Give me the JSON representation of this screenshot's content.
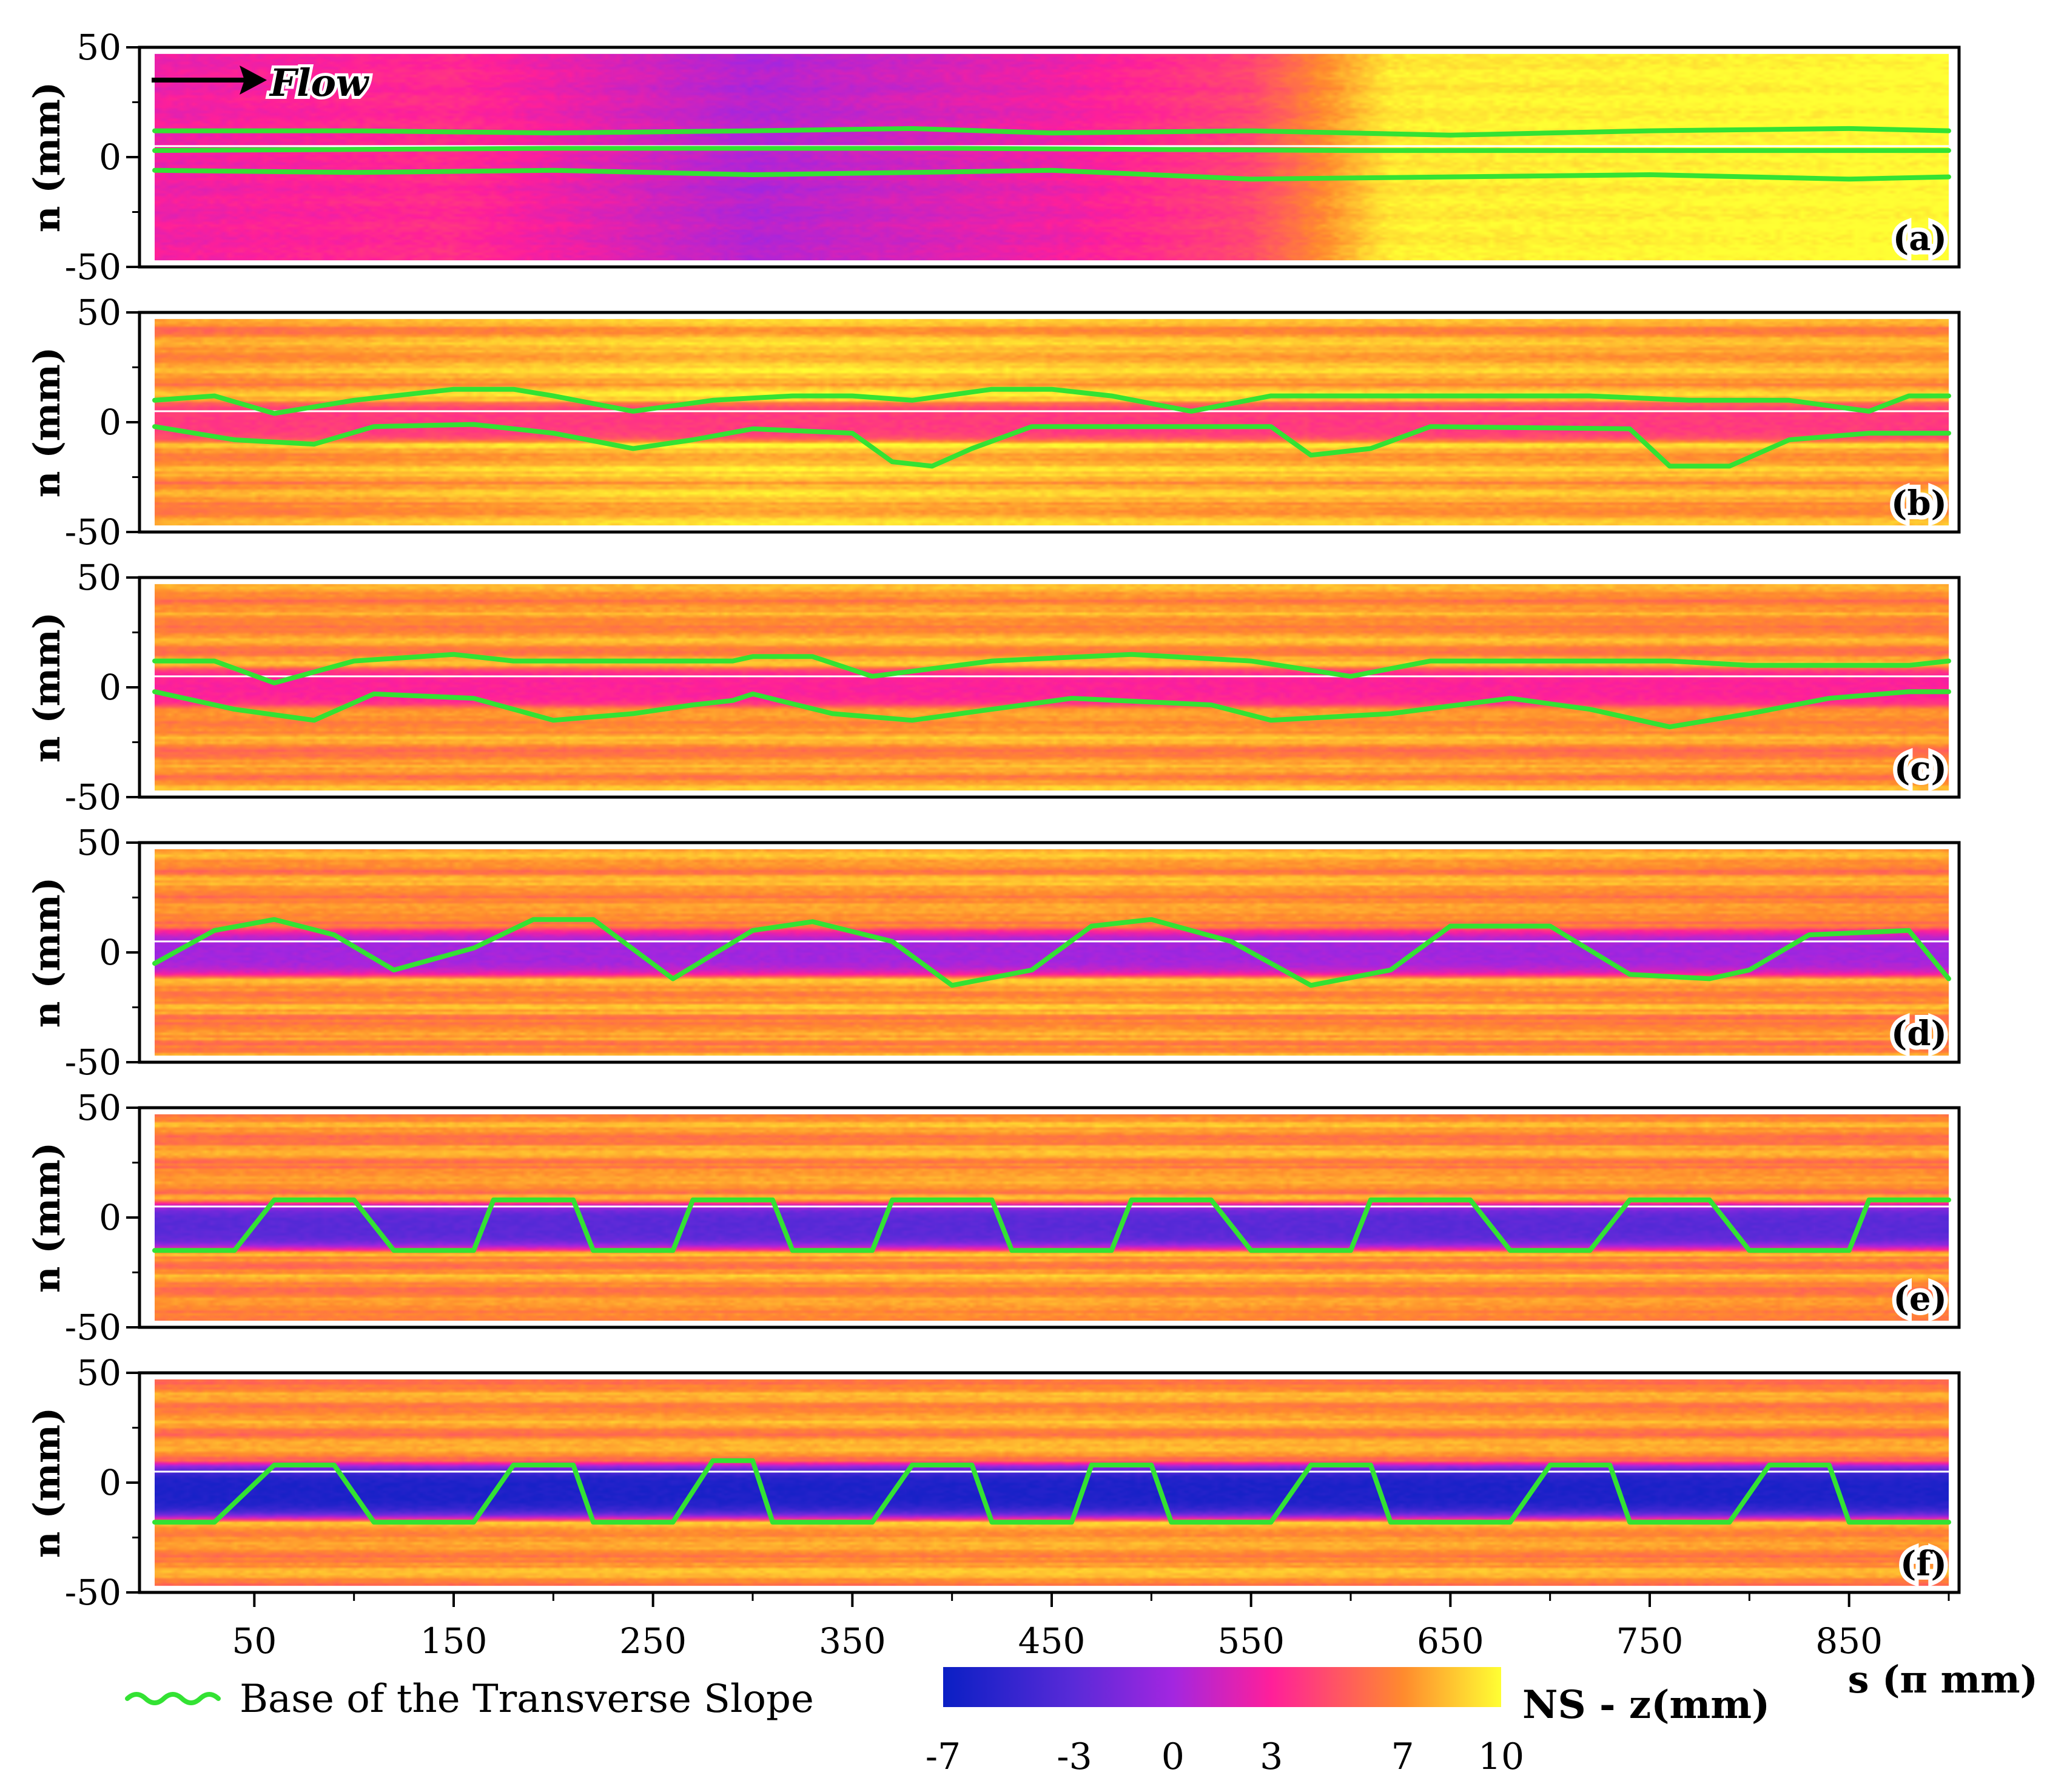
{
  "chart_data": {
    "type": "heatmap",
    "x_axis": {
      "label": "s (π mm)",
      "range": [
        0,
        900
      ],
      "ticks": [
        50,
        150,
        250,
        350,
        450,
        550,
        650,
        750,
        850
      ],
      "tick_labels": [
        "50",
        "150",
        "250",
        "350",
        "450",
        "550",
        "650",
        "750",
        "850"
      ]
    },
    "y_axis": {
      "label": "n (mm)",
      "range": [
        -50,
        50
      ],
      "data_range": [
        -47,
        47
      ],
      "ticks": [
        50,
        0,
        -50
      ],
      "tick_labels": [
        "50",
        "0",
        "-50"
      ]
    },
    "centerline_n": 5,
    "annotation": {
      "text": "Flow",
      "arrow": "right"
    },
    "colorbar": {
      "label": "NS - z(mm)",
      "range": [
        -7,
        10
      ],
      "ticks": [
        -7,
        -3,
        0,
        3,
        7,
        10
      ],
      "tick_labels": [
        "-7",
        "-3",
        "0",
        "3",
        "7",
        "10"
      ],
      "stops": [
        {
          "value": -7,
          "color": "#0a1fc4"
        },
        {
          "value": -3,
          "color": "#5a2ad8"
        },
        {
          "value": 0,
          "color": "#a326e0"
        },
        {
          "value": 3,
          "color": "#ff1f9a"
        },
        {
          "value": 7,
          "color": "#ff8a2e"
        },
        {
          "value": 10,
          "color": "#ffff33"
        }
      ]
    },
    "legend": [
      {
        "label": "Base of the Transverse Slope",
        "color": "#33e233"
      }
    ],
    "series": [
      {
        "name": "(a)",
        "panel_label": "(a)",
        "style": "tube",
        "upper": [
          [
            0,
            12
          ],
          [
            100,
            12
          ],
          [
            200,
            11
          ],
          [
            300,
            12
          ],
          [
            380,
            13
          ],
          [
            450,
            11
          ],
          [
            550,
            12
          ],
          [
            650,
            10
          ],
          [
            750,
            12
          ],
          [
            850,
            13
          ],
          [
            900,
            12
          ]
        ],
        "lower": [
          [
            0,
            -6
          ],
          [
            100,
            -7
          ],
          [
            200,
            -6
          ],
          [
            300,
            -8
          ],
          [
            380,
            -7
          ],
          [
            450,
            -6
          ],
          [
            550,
            -10
          ],
          [
            650,
            -9
          ],
          [
            750,
            -8
          ],
          [
            850,
            -10
          ],
          [
            900,
            -9
          ]
        ],
        "mid": [
          [
            0,
            3
          ],
          [
            200,
            4
          ],
          [
            400,
            4
          ],
          [
            600,
            3
          ],
          [
            800,
            3
          ],
          [
            900,
            3
          ]
        ],
        "field": {
          "base": 3.5,
          "center": 3,
          "center_width": 6,
          "trend": [
            [
              0,
              2.5
            ],
            [
              150,
              3.5
            ],
            [
              300,
              0.5
            ],
            [
              450,
              2.5
            ],
            [
              550,
              4.5
            ],
            [
              620,
              9.5
            ],
            [
              900,
              10
            ]
          ]
        }
      },
      {
        "name": "(b)",
        "panel_label": "(b)",
        "style": "blobs",
        "upper": [
          [
            0,
            10
          ],
          [
            30,
            12
          ],
          [
            60,
            4
          ],
          [
            100,
            10
          ],
          [
            150,
            15
          ],
          [
            180,
            15
          ],
          [
            200,
            12
          ],
          [
            240,
            5
          ],
          [
            280,
            10
          ],
          [
            320,
            12
          ],
          [
            350,
            12
          ],
          [
            380,
            10
          ],
          [
            420,
            15
          ],
          [
            450,
            15
          ],
          [
            480,
            12
          ],
          [
            520,
            5
          ],
          [
            560,
            12
          ],
          [
            650,
            12
          ],
          [
            720,
            12
          ],
          [
            770,
            10
          ],
          [
            820,
            10
          ],
          [
            860,
            5
          ],
          [
            880,
            12
          ],
          [
            900,
            12
          ]
        ],
        "lower": [
          [
            0,
            -2
          ],
          [
            40,
            -8
          ],
          [
            80,
            -10
          ],
          [
            110,
            -2
          ],
          [
            160,
            -1
          ],
          [
            200,
            -5
          ],
          [
            240,
            -12
          ],
          [
            270,
            -8
          ],
          [
            300,
            -3
          ],
          [
            350,
            -5
          ],
          [
            370,
            -18
          ],
          [
            390,
            -20
          ],
          [
            410,
            -12
          ],
          [
            440,
            -2
          ],
          [
            560,
            -2
          ],
          [
            580,
            -15
          ],
          [
            610,
            -12
          ],
          [
            640,
            -2
          ],
          [
            740,
            -3
          ],
          [
            760,
            -20
          ],
          [
            790,
            -20
          ],
          [
            820,
            -8
          ],
          [
            860,
            -5
          ],
          [
            900,
            -5
          ]
        ],
        "mid": [],
        "field": {
          "base": 7.5,
          "center": 4,
          "center_width": 10,
          "trend": [
            [
              0,
              7
            ],
            [
              300,
              8.5
            ],
            [
              500,
              8
            ],
            [
              900,
              7.5
            ]
          ]
        }
      },
      {
        "name": "(c)",
        "panel_label": "(c)",
        "style": "blobs",
        "upper": [
          [
            0,
            12
          ],
          [
            30,
            12
          ],
          [
            60,
            2
          ],
          [
            100,
            12
          ],
          [
            150,
            15
          ],
          [
            180,
            12
          ],
          [
            260,
            12
          ],
          [
            290,
            12
          ],
          [
            300,
            14
          ],
          [
            330,
            14
          ],
          [
            360,
            5
          ],
          [
            420,
            12
          ],
          [
            490,
            15
          ],
          [
            550,
            12
          ],
          [
            600,
            5
          ],
          [
            640,
            12
          ],
          [
            700,
            12
          ],
          [
            760,
            12
          ],
          [
            800,
            10
          ],
          [
            880,
            10
          ],
          [
            900,
            12
          ]
        ],
        "lower": [
          [
            0,
            -2
          ],
          [
            40,
            -10
          ],
          [
            80,
            -15
          ],
          [
            110,
            -3
          ],
          [
            160,
            -5
          ],
          [
            200,
            -15
          ],
          [
            240,
            -12
          ],
          [
            270,
            -8
          ],
          [
            290,
            -6
          ],
          [
            300,
            -3
          ],
          [
            340,
            -12
          ],
          [
            380,
            -15
          ],
          [
            420,
            -10
          ],
          [
            460,
            -5
          ],
          [
            530,
            -8
          ],
          [
            560,
            -15
          ],
          [
            620,
            -12
          ],
          [
            680,
            -5
          ],
          [
            720,
            -10
          ],
          [
            760,
            -18
          ],
          [
            800,
            -12
          ],
          [
            840,
            -5
          ],
          [
            880,
            -2
          ],
          [
            900,
            -2
          ]
        ],
        "mid": [],
        "field": {
          "base": 7.5,
          "center": 3,
          "center_width": 10,
          "trend": [
            [
              0,
              7
            ],
            [
              450,
              7.5
            ],
            [
              900,
              7
            ]
          ]
        }
      },
      {
        "name": "(d)",
        "panel_label": "(d)",
        "style": "wave",
        "upper": [
          [
            0,
            -5
          ],
          [
            30,
            10
          ],
          [
            60,
            15
          ],
          [
            90,
            8
          ],
          [
            120,
            -8
          ],
          [
            160,
            2
          ],
          [
            190,
            15
          ],
          [
            220,
            15
          ],
          [
            260,
            -12
          ],
          [
            300,
            10
          ],
          [
            330,
            14
          ],
          [
            370,
            5
          ],
          [
            400,
            -15
          ],
          [
            440,
            -8
          ],
          [
            470,
            12
          ],
          [
            500,
            15
          ],
          [
            540,
            5
          ],
          [
            580,
            -15
          ],
          [
            620,
            -8
          ],
          [
            650,
            12
          ],
          [
            700,
            12
          ],
          [
            740,
            -10
          ],
          [
            780,
            -12
          ],
          [
            800,
            -8
          ],
          [
            830,
            8
          ],
          [
            880,
            10
          ],
          [
            900,
            -12
          ]
        ],
        "lower": [],
        "mid": [],
        "field": {
          "base": 7.5,
          "center": 0,
          "center_width": 12,
          "trend": [
            [
              0,
              7
            ],
            [
              450,
              7.5
            ],
            [
              900,
              7
            ]
          ]
        }
      },
      {
        "name": "(e)",
        "panel_label": "(e)",
        "style": "square",
        "upper": [
          [
            0,
            -15
          ],
          [
            40,
            -15
          ],
          [
            60,
            8
          ],
          [
            100,
            8
          ],
          [
            120,
            -15
          ],
          [
            160,
            -15
          ],
          [
            170,
            8
          ],
          [
            210,
            8
          ],
          [
            220,
            -15
          ],
          [
            260,
            -15
          ],
          [
            270,
            8
          ],
          [
            310,
            8
          ],
          [
            320,
            -15
          ],
          [
            360,
            -15
          ],
          [
            370,
            8
          ],
          [
            420,
            8
          ],
          [
            430,
            -15
          ],
          [
            480,
            -15
          ],
          [
            490,
            8
          ],
          [
            530,
            8
          ],
          [
            550,
            -15
          ],
          [
            600,
            -15
          ],
          [
            610,
            8
          ],
          [
            660,
            8
          ],
          [
            680,
            -15
          ],
          [
            720,
            -15
          ],
          [
            740,
            8
          ],
          [
            780,
            8
          ],
          [
            800,
            -15
          ],
          [
            850,
            -15
          ],
          [
            860,
            8
          ],
          [
            900,
            8
          ]
        ],
        "lower": [],
        "mid": [],
        "field": {
          "base": 7.5,
          "center": -3,
          "center_width": 12,
          "trend": [
            [
              0,
              7
            ],
            [
              450,
              7.5
            ],
            [
              900,
              7
            ]
          ]
        }
      },
      {
        "name": "(f)",
        "panel_label": "(f)",
        "style": "square",
        "upper": [
          [
            0,
            -18
          ],
          [
            30,
            -18
          ],
          [
            60,
            8
          ],
          [
            90,
            8
          ],
          [
            110,
            -18
          ],
          [
            160,
            -18
          ],
          [
            180,
            8
          ],
          [
            210,
            8
          ],
          [
            220,
            -18
          ],
          [
            260,
            -18
          ],
          [
            280,
            10
          ],
          [
            300,
            10
          ],
          [
            310,
            -18
          ],
          [
            360,
            -18
          ],
          [
            380,
            8
          ],
          [
            410,
            8
          ],
          [
            420,
            -18
          ],
          [
            460,
            -18
          ],
          [
            470,
            8
          ],
          [
            500,
            8
          ],
          [
            510,
            -18
          ],
          [
            560,
            -18
          ],
          [
            580,
            8
          ],
          [
            610,
            8
          ],
          [
            620,
            -18
          ],
          [
            680,
            -18
          ],
          [
            700,
            8
          ],
          [
            730,
            8
          ],
          [
            740,
            -18
          ],
          [
            790,
            -18
          ],
          [
            810,
            8
          ],
          [
            840,
            8
          ],
          [
            850,
            -18
          ],
          [
            900,
            -18
          ]
        ],
        "lower": [],
        "mid": [],
        "field": {
          "base": 7.5,
          "center": -6,
          "center_width": 14,
          "trend": [
            [
              0,
              7
            ],
            [
              450,
              7.5
            ],
            [
              900,
              7
            ]
          ]
        }
      }
    ]
  }
}
